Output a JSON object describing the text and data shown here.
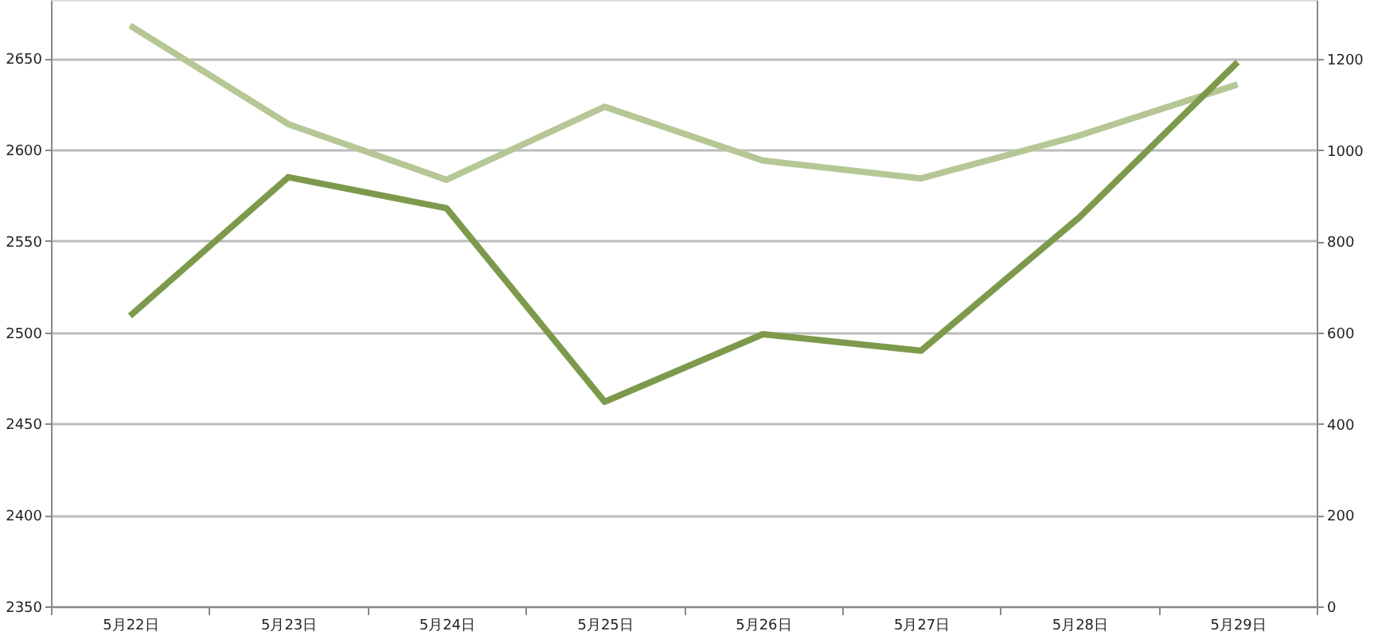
{
  "chart_data": {
    "type": "line",
    "categories": [
      "5月22日",
      "5月23日",
      "5月24日",
      "5月25日",
      "5月26日",
      "5月27日",
      "5月28日",
      "5月29日"
    ],
    "series": [
      {
        "color": "#b5c795",
        "axis": "y2",
        "values": [
          1273,
          1057,
          935,
          1095,
          977,
          938,
          1032,
          1144
        ]
      },
      {
        "color": "#7d9a4c",
        "values": [
          2509,
          2585,
          2568,
          2462,
          2499,
          2490,
          2563,
          2648
        ]
      }
    ],
    "ylim": [
      2350,
      2682
    ],
    "yticks": [
      2350,
      2400,
      2450,
      2500,
      2550,
      2600,
      2650
    ],
    "y2lim": [
      0,
      1329
    ],
    "y2ticks": [
      0,
      200,
      400,
      600,
      800,
      1000,
      1200
    ],
    "grid": "y",
    "marker": "none",
    "line_style": "solid"
  }
}
